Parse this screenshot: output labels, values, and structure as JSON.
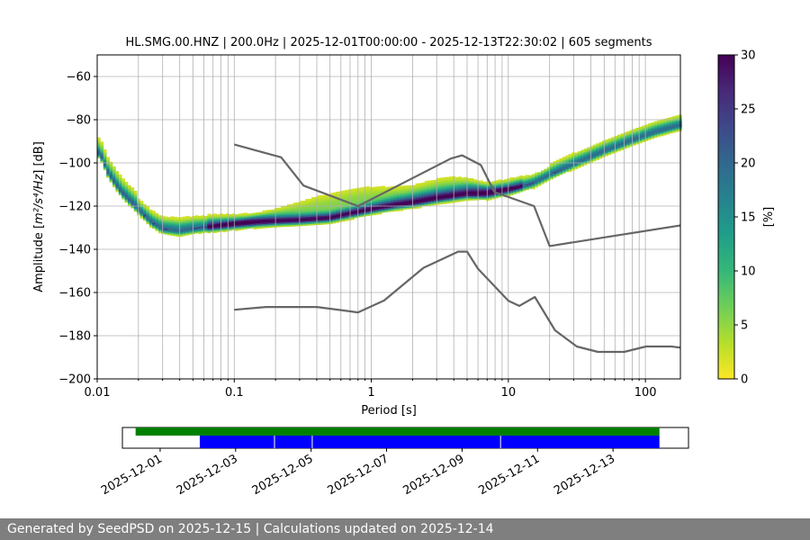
{
  "chart_data": {
    "type": "heatmap",
    "title": "HL.SMG.00.HNZ | 200.0Hz | 2025-12-01T00:00:00 - 2025-12-13T22:30:02 | 605 segments",
    "xlabel": "Period [s]",
    "ylabel_prefix": "Amplitude [",
    "ylabel_suffix": "] [dB]",
    "ylabel_unit": "m²/s⁴/Hz",
    "x_scale": "log",
    "xlim": [
      0.01,
      180
    ],
    "ylim": [
      -200,
      -50
    ],
    "grid": true,
    "x_ticks": [
      {
        "v": 0.01,
        "label": "0.01"
      },
      {
        "v": 0.1,
        "label": "0.1"
      },
      {
        "v": 1,
        "label": "1"
      },
      {
        "v": 10,
        "label": "10"
      },
      {
        "v": 100,
        "label": "100"
      }
    ],
    "y_ticks": [
      {
        "v": -200,
        "label": "−200"
      },
      {
        "v": -180,
        "label": "−180"
      },
      {
        "v": -160,
        "label": "−160"
      },
      {
        "v": -140,
        "label": "−140"
      },
      {
        "v": -120,
        "label": "−120"
      },
      {
        "v": -100,
        "label": "−100"
      },
      {
        "v": -80,
        "label": "−80"
      },
      {
        "v": -60,
        "label": "−60"
      }
    ],
    "colorbar": {
      "label": "[%]",
      "range": [
        0,
        30
      ],
      "ticks": [
        {
          "v": 0,
          "label": "0"
        },
        {
          "v": 5,
          "label": "5"
        },
        {
          "v": 10,
          "label": "10"
        },
        {
          "v": 15,
          "label": "15"
        },
        {
          "v": 20,
          "label": "20"
        },
        {
          "v": 25,
          "label": "25"
        },
        {
          "v": 30,
          "label": "30"
        }
      ],
      "colormap": "viridis_r",
      "stops": [
        "#fde725",
        "#b5de2b",
        "#6ece58",
        "#35b779",
        "#1f9e89",
        "#26828e",
        "#31688e",
        "#3e4989",
        "#482878",
        "#440154"
      ]
    },
    "series": [
      {
        "name": "",
        "role": "density-mode",
        "x": [
          0.0105,
          0.012,
          0.015,
          0.02,
          0.025,
          0.03,
          0.04,
          0.05,
          0.07,
          0.1,
          0.15,
          0.2,
          0.3,
          0.5,
          0.7,
          1,
          1.5,
          2,
          3,
          5,
          7,
          10,
          15,
          20,
          30,
          50,
          80,
          120,
          180
        ],
        "y": [
          -95,
          -104,
          -113,
          -121,
          -127,
          -130,
          -131,
          -130,
          -129,
          -128,
          -127,
          -126.5,
          -126,
          -125,
          -123,
          -121,
          -119,
          -118,
          -116,
          -114,
          -114,
          -112,
          -109,
          -105,
          -100,
          -94,
          -89,
          -85,
          -82
        ]
      },
      {
        "name": "",
        "role": "peterson-nhnm",
        "x": [
          0.1,
          0.22,
          0.32,
          0.8,
          3.8,
          4.6,
          6.3,
          7.9,
          15.4,
          20,
          354
        ],
        "y": [
          -91.5,
          -97.4,
          -110.5,
          -120,
          -98,
          -96.5,
          -101,
          -113.5,
          -120,
          -138.5,
          -126
        ]
      },
      {
        "name": "",
        "role": "peterson-nlnm",
        "x": [
          0.1,
          0.17,
          0.4,
          0.8,
          1.24,
          2.4,
          4.3,
          5,
          6,
          10,
          12,
          15.6,
          21.9,
          31.6,
          45,
          70,
          101,
          154,
          328
        ],
        "y": [
          -168,
          -166.7,
          -166.7,
          -169.2,
          -163.7,
          -148.6,
          -141.1,
          -141.1,
          -149,
          -163.8,
          -166.2,
          -162.1,
          -177.5,
          -185,
          -187.5,
          -187.5,
          -185,
          -185,
          -187.5
        ]
      }
    ]
  },
  "timeline": {
    "x_ticks": [
      "2025-12-01",
      "2025-12-03",
      "2025-12-05",
      "2025-12-07",
      "2025-12-09",
      "2025-12-11",
      "2025-12-13"
    ],
    "range": [
      "2025-11-30",
      "2025-12-15"
    ],
    "bars": [
      {
        "row": "top",
        "color": "#008000",
        "start": "2025-12-00.35",
        "end": "2025-12-14.23"
      },
      {
        "row": "bottom",
        "color": "#0000ff",
        "start": "2025-12-02.05",
        "end": "2025-12-14.23",
        "breaks": [
          "2025-12-04.03",
          "2025-12-05.03",
          "2025-12-10.02"
        ]
      }
    ]
  },
  "footer": {
    "text": "Generated by SeedPSD on 2025-12-15 | Calculations updated on 2025-12-14"
  }
}
